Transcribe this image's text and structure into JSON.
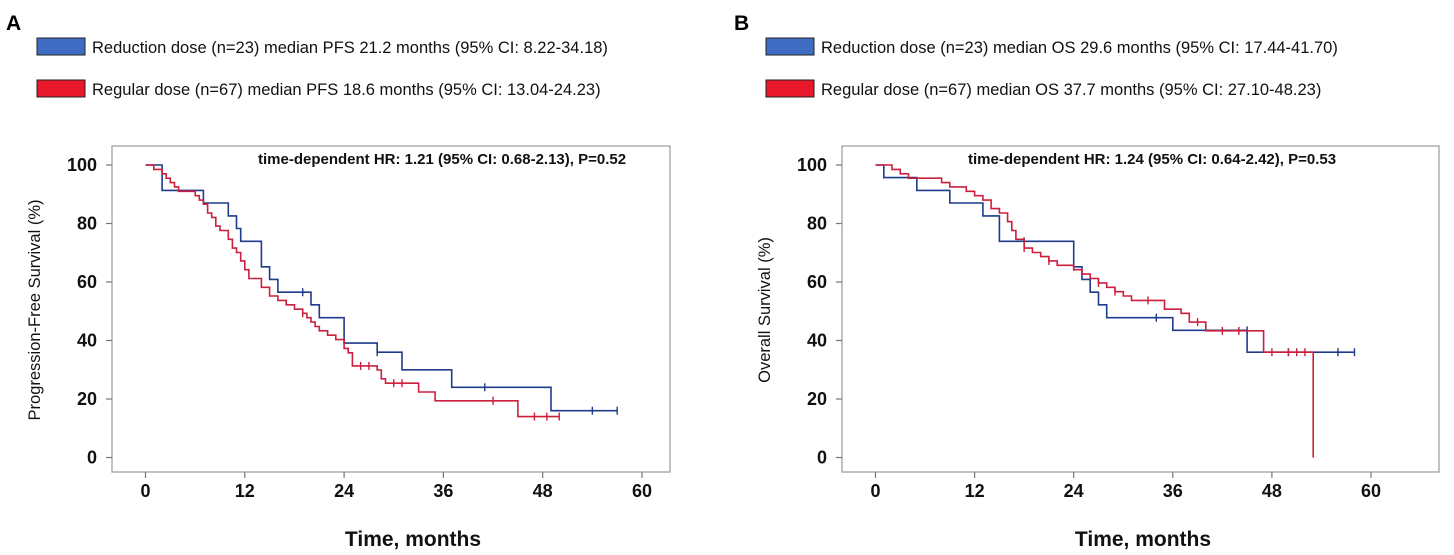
{
  "chart_data": [
    {
      "type": "line",
      "panel": "A",
      "title": "",
      "xlabel": "Time, months",
      "ylabel": "Progression-Free Survival (%)",
      "annotation": "time-dependent HR: 1.21 (95% CI: 0.68-2.13), P=0.52",
      "xticks": [
        0,
        12,
        24,
        36,
        48,
        60
      ],
      "yticks": [
        0,
        20,
        40,
        60,
        80,
        100
      ],
      "xlim": [
        -3,
        66
      ],
      "ylim": [
        -5,
        107
      ],
      "legend": [
        {
          "label": "Reduction dose (n=23) median PFS 21.2 months (95% CI: 8.22-34.18)",
          "color": "#3e6cc2"
        },
        {
          "label": "Regular dose  (n=67) median PFS 18.6 months (95% CI: 13.04-24.23)",
          "color": "#e8182a"
        }
      ],
      "series": [
        {
          "name": "Reduction dose",
          "color": "#1f3b8a",
          "steps": [
            [
              0,
              100
            ],
            [
              2,
              100
            ],
            [
              2,
              91.3
            ],
            [
              7,
              91.3
            ],
            [
              7,
              87
            ],
            [
              10,
              87
            ],
            [
              10,
              82.6
            ],
            [
              11,
              82.6
            ],
            [
              11,
              78.3
            ],
            [
              11.5,
              78.3
            ],
            [
              11.5,
              73.9
            ],
            [
              14,
              73.9
            ],
            [
              14,
              65.2
            ],
            [
              15,
              65.2
            ],
            [
              15,
              60.9
            ],
            [
              16,
              60.9
            ],
            [
              16,
              56.5
            ],
            [
              19,
              56.5
            ],
            [
              19,
              56.5
            ],
            [
              20,
              56.5
            ],
            [
              20,
              52.2
            ],
            [
              21,
              52.2
            ],
            [
              21,
              47.8
            ],
            [
              22,
              47.8
            ],
            [
              22,
              47.8
            ],
            [
              23,
              47.8
            ],
            [
              23,
              47.8
            ],
            [
              24,
              47.8
            ],
            [
              24,
              39.1
            ],
            [
              25,
              39.1
            ],
            [
              25,
              39.1
            ],
            [
              27,
              39.1
            ],
            [
              27,
              39.1
            ],
            [
              28,
              39.1
            ],
            [
              28,
              36
            ],
            [
              31,
              36
            ],
            [
              31,
              30
            ],
            [
              33,
              30
            ],
            [
              33,
              30
            ],
            [
              37,
              30
            ],
            [
              37,
              24
            ],
            [
              41,
              24
            ],
            [
              41,
              24
            ],
            [
              49,
              24
            ],
            [
              49,
              16
            ],
            [
              57,
              16
            ]
          ],
          "censors": [
            [
              19,
              56.5
            ],
            [
              28,
              36
            ],
            [
              41,
              24
            ],
            [
              54,
              16
            ],
            [
              57,
              16
            ]
          ]
        },
        {
          "name": "Regular dose",
          "color": "#cc1f3e",
          "steps": [
            [
              0,
              100
            ],
            [
              1,
              100
            ],
            [
              1,
              98.5
            ],
            [
              2,
              98.5
            ],
            [
              2,
              97
            ],
            [
              2.5,
              97
            ],
            [
              2.5,
              95.5
            ],
            [
              3,
              95.5
            ],
            [
              3,
              94
            ],
            [
              3.5,
              94
            ],
            [
              3.5,
              92.5
            ],
            [
              4,
              92.5
            ],
            [
              4,
              91
            ],
            [
              6,
              91
            ],
            [
              6,
              89.5
            ],
            [
              6.5,
              89.5
            ],
            [
              6.5,
              88
            ],
            [
              7,
              88
            ],
            [
              7,
              86.6
            ],
            [
              7.5,
              86.6
            ],
            [
              7.5,
              83.6
            ],
            [
              8,
              83.6
            ],
            [
              8,
              82.1
            ],
            [
              8.5,
              82.1
            ],
            [
              8.5,
              79.1
            ],
            [
              9,
              79.1
            ],
            [
              9,
              77.6
            ],
            [
              10,
              77.6
            ],
            [
              10,
              74.6
            ],
            [
              10.5,
              74.6
            ],
            [
              10.5,
              71.6
            ],
            [
              11,
              71.6
            ],
            [
              11,
              70.1
            ],
            [
              11.5,
              70.1
            ],
            [
              11.5,
              67.2
            ],
            [
              12,
              67.2
            ],
            [
              12,
              64.2
            ],
            [
              12.5,
              64.2
            ],
            [
              12.5,
              61.2
            ],
            [
              14,
              61.2
            ],
            [
              14,
              58.2
            ],
            [
              15,
              58.2
            ],
            [
              15,
              55.2
            ],
            [
              16,
              55.2
            ],
            [
              16,
              53.7
            ],
            [
              17,
              53.7
            ],
            [
              17,
              52.2
            ],
            [
              18,
              52.2
            ],
            [
              18,
              50.7
            ],
            [
              19,
              50.7
            ],
            [
              19,
              49.3
            ],
            [
              19.5,
              49.3
            ],
            [
              19.5,
              47.8
            ],
            [
              20,
              47.8
            ],
            [
              20,
              46.3
            ],
            [
              20.5,
              46.3
            ],
            [
              20.5,
              44.8
            ],
            [
              21,
              44.8
            ],
            [
              21,
              43.3
            ],
            [
              22,
              43.3
            ],
            [
              22,
              41.8
            ],
            [
              23,
              41.8
            ],
            [
              23,
              40.3
            ],
            [
              24,
              40.3
            ],
            [
              24,
              37.3
            ],
            [
              24.5,
              37.3
            ],
            [
              24.5,
              35.8
            ],
            [
              25,
              35.8
            ],
            [
              25,
              31.3
            ],
            [
              28,
              31.3
            ],
            [
              28,
              29.9
            ],
            [
              28.5,
              29.9
            ],
            [
              28.5,
              26.9
            ],
            [
              29,
              26.9
            ],
            [
              29,
              25.4
            ],
            [
              33,
              25.4
            ],
            [
              33,
              22.4
            ],
            [
              34,
              22.4
            ],
            [
              34,
              22.4
            ],
            [
              35,
              22.4
            ],
            [
              35,
              19.4
            ],
            [
              37,
              19.4
            ],
            [
              37,
              19.4
            ],
            [
              42,
              19.4
            ],
            [
              42,
              19.4
            ],
            [
              45,
              19.4
            ],
            [
              45,
              14
            ],
            [
              50,
              14
            ]
          ],
          "censors": [
            [
              19,
              49.3
            ],
            [
              26,
              31.3
            ],
            [
              27,
              31.3
            ],
            [
              30,
              25.4
            ],
            [
              31,
              25.4
            ],
            [
              42,
              19.4
            ],
            [
              47,
              14
            ],
            [
              48.5,
              14
            ],
            [
              50,
              14
            ]
          ]
        }
      ]
    },
    {
      "type": "line",
      "panel": "B",
      "title": "",
      "xlabel": "Time, months",
      "ylabel": "Overall Survival (%)",
      "annotation": "time-dependent HR: 1.24 (95% CI: 0.64-2.42), P=0.53",
      "xticks": [
        0,
        12,
        24,
        36,
        48,
        60
      ],
      "yticks": [
        0,
        20,
        40,
        60,
        80,
        100
      ],
      "xlim": [
        -3,
        66
      ],
      "ylim": [
        -5,
        107
      ],
      "legend": [
        {
          "label": "Reduction dose (n=23) median OS 29.6 months (95% CI: 17.44-41.70)",
          "color": "#3e6cc2"
        },
        {
          "label": "Regular dose  (n=67) median OS 37.7 months (95% CI: 27.10-48.23)",
          "color": "#e8182a"
        }
      ],
      "series": [
        {
          "name": "Reduction dose",
          "color": "#1f3b8a",
          "steps": [
            [
              0,
              100
            ],
            [
              1,
              100
            ],
            [
              1,
              95.7
            ],
            [
              5,
              95.7
            ],
            [
              5,
              91.3
            ],
            [
              9,
              91.3
            ],
            [
              9,
              87
            ],
            [
              12,
              87
            ],
            [
              12,
              87
            ],
            [
              13,
              87
            ],
            [
              13,
              82.6
            ],
            [
              15,
              82.6
            ],
            [
              15,
              73.9
            ],
            [
              19,
              73.9
            ],
            [
              19,
              73.9
            ],
            [
              24,
              73.9
            ],
            [
              24,
              65.2
            ],
            [
              25,
              65.2
            ],
            [
              25,
              60.9
            ],
            [
              26,
              60.9
            ],
            [
              26,
              56.5
            ],
            [
              27,
              56.5
            ],
            [
              27,
              52.2
            ],
            [
              28,
              52.2
            ],
            [
              28,
              47.8
            ],
            [
              30,
              47.8
            ],
            [
              30,
              47.8
            ],
            [
              31,
              47.8
            ],
            [
              31,
              47.8
            ],
            [
              36,
              47.8
            ],
            [
              36,
              43.5
            ],
            [
              45,
              43.5
            ],
            [
              45,
              36
            ],
            [
              58,
              36
            ]
          ],
          "censors": [
            [
              18,
              73.9
            ],
            [
              24,
              65.2
            ],
            [
              34,
              47.8
            ],
            [
              45,
              43.5
            ],
            [
              50,
              36
            ],
            [
              56,
              36
            ],
            [
              58,
              36
            ]
          ]
        },
        {
          "name": "Regular dose",
          "color": "#cc1f3e",
          "steps": [
            [
              0,
              100
            ],
            [
              2,
              100
            ],
            [
              2,
              98.5
            ],
            [
              3,
              98.5
            ],
            [
              3,
              97
            ],
            [
              4,
              97
            ],
            [
              4,
              95.5
            ],
            [
              8,
              95.5
            ],
            [
              8,
              94
            ],
            [
              9,
              94
            ],
            [
              9,
              92.5
            ],
            [
              11,
              92.5
            ],
            [
              11,
              91
            ],
            [
              12,
              91
            ],
            [
              12,
              89.5
            ],
            [
              13,
              89.5
            ],
            [
              13,
              88
            ],
            [
              14,
              88
            ],
            [
              14,
              85.1
            ],
            [
              15,
              85.1
            ],
            [
              15,
              83.6
            ],
            [
              16,
              83.6
            ],
            [
              16,
              80.6
            ],
            [
              16.5,
              80.6
            ],
            [
              16.5,
              77.6
            ],
            [
              17,
              77.6
            ],
            [
              17,
              74.6
            ],
            [
              18,
              74.6
            ],
            [
              18,
              71.6
            ],
            [
              19,
              71.6
            ],
            [
              19,
              70.1
            ],
            [
              20,
              70.1
            ],
            [
              20,
              68.7
            ],
            [
              21,
              68.7
            ],
            [
              21,
              67.2
            ],
            [
              22,
              67.2
            ],
            [
              22,
              65.7
            ],
            [
              23,
              65.7
            ],
            [
              23,
              65.7
            ],
            [
              24,
              65.7
            ],
            [
              24,
              64.2
            ],
            [
              25,
              64.2
            ],
            [
              25,
              62.7
            ],
            [
              26,
              62.7
            ],
            [
              26,
              61.2
            ],
            [
              27,
              61.2
            ],
            [
              27,
              59.7
            ],
            [
              28,
              59.7
            ],
            [
              28,
              58.2
            ],
            [
              29,
              58.2
            ],
            [
              29,
              56.7
            ],
            [
              30,
              56.7
            ],
            [
              30,
              55.2
            ],
            [
              31,
              55.2
            ],
            [
              31,
              53.7
            ],
            [
              35,
              53.7
            ],
            [
              35,
              50.7
            ],
            [
              37,
              50.7
            ],
            [
              37,
              49.3
            ],
            [
              38,
              49.3
            ],
            [
              38,
              46.3
            ],
            [
              40,
              46.3
            ],
            [
              40,
              43.3
            ],
            [
              47,
              43.3
            ],
            [
              47,
              36
            ],
            [
              53,
              36
            ],
            [
              53,
              0
            ]
          ],
          "censors": [
            [
              18,
              71.6
            ],
            [
              21,
              67.2
            ],
            [
              27,
              59.7
            ],
            [
              29,
              56.7
            ],
            [
              33,
              53.7
            ],
            [
              39,
              46.3
            ],
            [
              42,
              43.3
            ],
            [
              44,
              43.3
            ],
            [
              48,
              36
            ],
            [
              50,
              36
            ],
            [
              51,
              36
            ],
            [
              52,
              36
            ]
          ]
        }
      ]
    }
  ],
  "panel_labels": [
    "A",
    "B"
  ]
}
